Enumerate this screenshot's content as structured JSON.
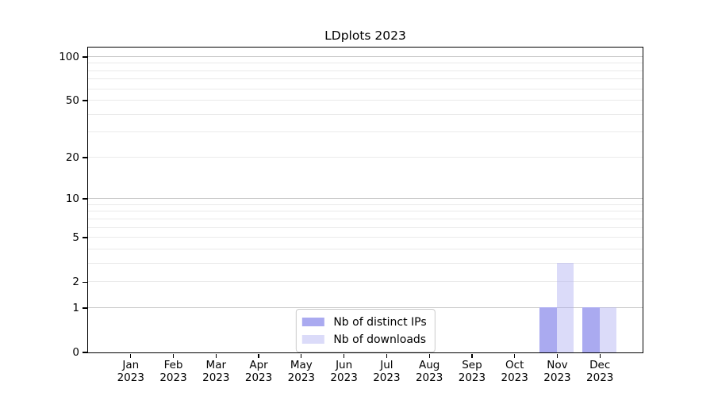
{
  "chart_data": {
    "type": "bar",
    "title": "LDplots 2023",
    "categories": [
      {
        "month": "Jan",
        "year": "2023"
      },
      {
        "month": "Feb",
        "year": "2023"
      },
      {
        "month": "Mar",
        "year": "2023"
      },
      {
        "month": "Apr",
        "year": "2023"
      },
      {
        "month": "May",
        "year": "2023"
      },
      {
        "month": "Jun",
        "year": "2023"
      },
      {
        "month": "Jul",
        "year": "2023"
      },
      {
        "month": "Aug",
        "year": "2023"
      },
      {
        "month": "Sep",
        "year": "2023"
      },
      {
        "month": "Oct",
        "year": "2023"
      },
      {
        "month": "Nov",
        "year": "2023"
      },
      {
        "month": "Dec",
        "year": "2023"
      }
    ],
    "series": [
      {
        "name": "Nb of distinct IPs",
        "color": "#aaaaf0",
        "values": [
          0,
          0,
          0,
          0,
          0,
          0,
          0,
          0,
          0,
          0,
          1,
          1
        ]
      },
      {
        "name": "Nb of downloads",
        "color": "rgba(170,170,240,0.42)",
        "values": [
          0,
          0,
          0,
          0,
          0,
          0,
          0,
          0,
          0,
          0,
          3,
          1
        ]
      }
    ],
    "yscale": "log1p",
    "ylim": [
      0,
      116
    ],
    "yticks": [
      0,
      1,
      2,
      5,
      10,
      20,
      50,
      100
    ],
    "grid": {
      "major_values": [
        1,
        10,
        100
      ],
      "minor_values": [
        2,
        3,
        4,
        5,
        6,
        7,
        8,
        9,
        20,
        30,
        40,
        50,
        60,
        70,
        80,
        90
      ],
      "major_color": "#c6c6c6",
      "minor_color": "#eaeaea"
    },
    "legend": {
      "position": "lower center"
    },
    "xlabel": "",
    "ylabel": ""
  },
  "colors": {
    "background": "#ffffff",
    "spine": "#000000",
    "text": "#000000"
  }
}
